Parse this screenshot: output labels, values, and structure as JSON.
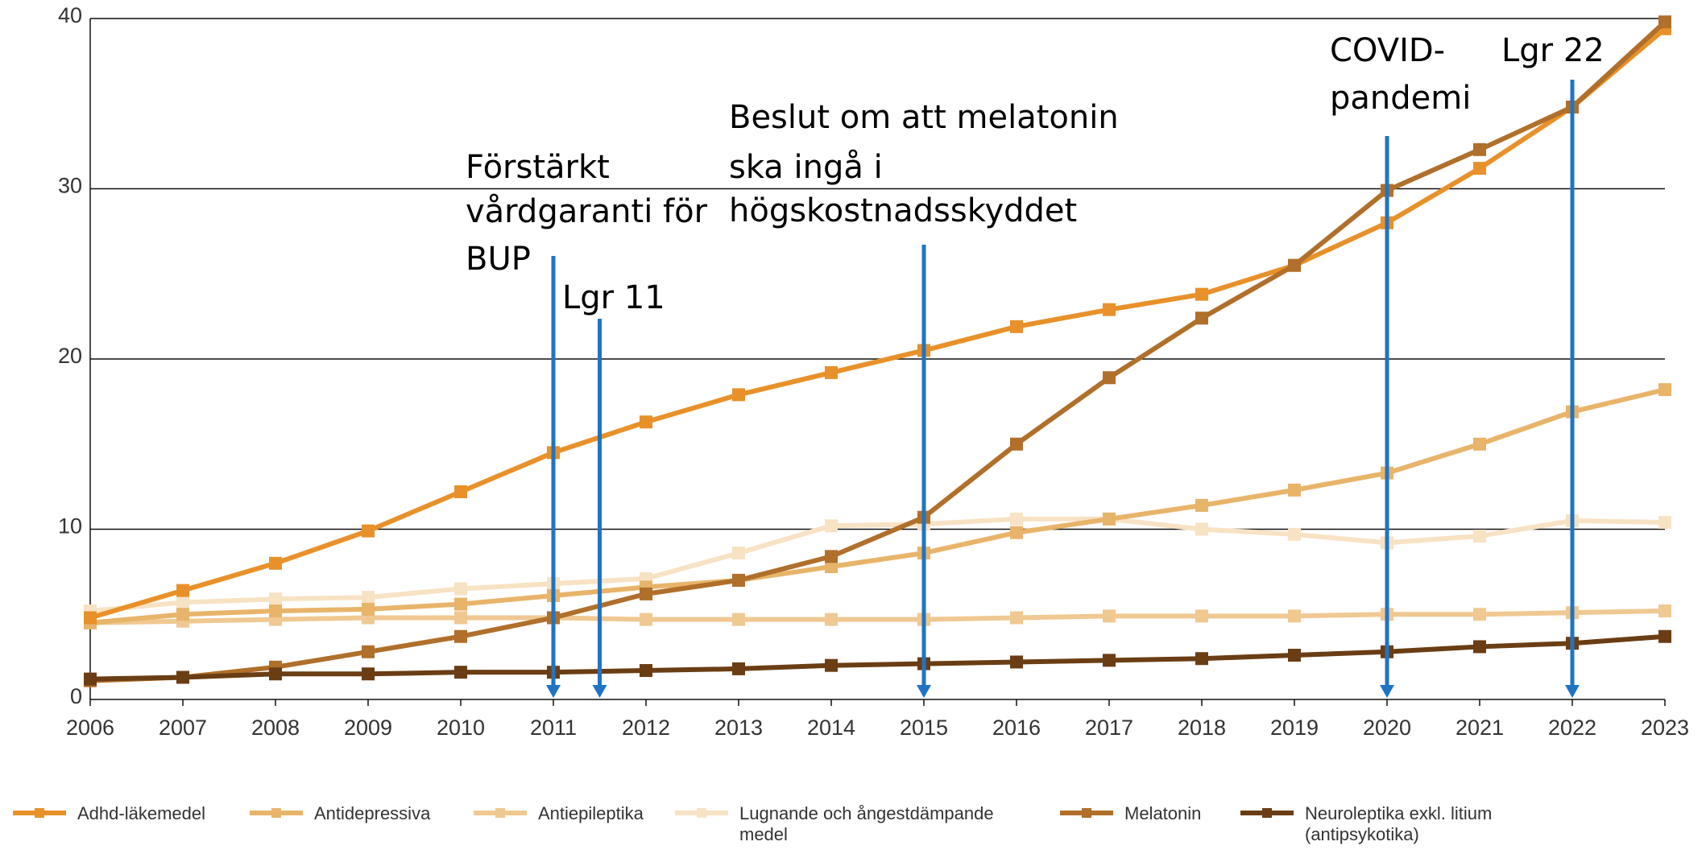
{
  "chart_data": {
    "type": "line",
    "categories": [
      "2006",
      "2007",
      "2008",
      "2009",
      "2010",
      "2011",
      "2012",
      "2013",
      "2014",
      "2015",
      "2016",
      "2017",
      "2018",
      "2019",
      "2020",
      "2021",
      "2022",
      "2023"
    ],
    "ylim": [
      0,
      40
    ],
    "yticks": [
      0,
      10,
      20,
      30,
      40
    ],
    "grid": true,
    "legend": "bottom",
    "series": [
      {
        "name": "Adhd-läkemedel",
        "color": "#e8912a",
        "values": [
          4.8,
          6.4,
          8.0,
          9.9,
          12.2,
          14.5,
          16.3,
          17.9,
          19.2,
          20.5,
          21.9,
          22.9,
          23.8,
          25.5,
          28.0,
          31.2,
          34.8,
          39.4
        ]
      },
      {
        "name": "Antidepressiva",
        "color": "#e8b46a",
        "values": [
          4.5,
          5.0,
          5.2,
          5.3,
          5.6,
          6.1,
          6.6,
          7.0,
          7.8,
          8.6,
          9.8,
          10.6,
          11.4,
          12.3,
          13.3,
          15.0,
          16.9,
          18.2
        ]
      },
      {
        "name": "Antiepileptika",
        "color": "#f0c892",
        "values": [
          4.5,
          4.6,
          4.7,
          4.8,
          4.8,
          4.8,
          4.7,
          4.7,
          4.7,
          4.7,
          4.8,
          4.9,
          4.9,
          4.9,
          5.0,
          5.0,
          5.1,
          5.2
        ]
      },
      {
        "name": "Lugnande och ångestdämpande medel",
        "color": "#f8e2c4",
        "values": [
          5.2,
          5.7,
          5.9,
          6.0,
          6.5,
          6.8,
          7.1,
          8.6,
          10.2,
          10.3,
          10.6,
          10.6,
          10.0,
          9.7,
          9.2,
          9.6,
          10.5,
          10.4
        ]
      },
      {
        "name": "Melatonin",
        "color": "#b06f2a",
        "values": [
          1.1,
          1.3,
          1.9,
          2.8,
          3.7,
          4.8,
          6.2,
          7.0,
          8.4,
          10.7,
          15.0,
          18.9,
          22.4,
          25.5,
          29.9,
          32.3,
          34.8,
          39.8
        ]
      },
      {
        "name": "Neuroleptika exkl. litium (antipsykotika)",
        "color": "#6b3d14",
        "values": [
          1.2,
          1.3,
          1.5,
          1.5,
          1.6,
          1.6,
          1.7,
          1.8,
          2.0,
          2.1,
          2.2,
          2.3,
          2.4,
          2.6,
          2.8,
          3.1,
          3.3,
          3.7
        ]
      }
    ],
    "annotations": [
      {
        "x": 2011,
        "lines": [
          "Förstärkt",
          "vårdgaranti för",
          "BUP"
        ]
      },
      {
        "x": 2011.5,
        "lines": [
          "Lgr 11"
        ]
      },
      {
        "x": 2015,
        "lines": [
          "Beslut om att melatonin",
          "ska ingå i",
          "högskostnadsskyddet"
        ]
      },
      {
        "x": 2020,
        "lines": [
          "COVID-",
          "pandemi"
        ]
      },
      {
        "x": 2022,
        "lines": [
          "Lgr 22"
        ]
      }
    ]
  }
}
